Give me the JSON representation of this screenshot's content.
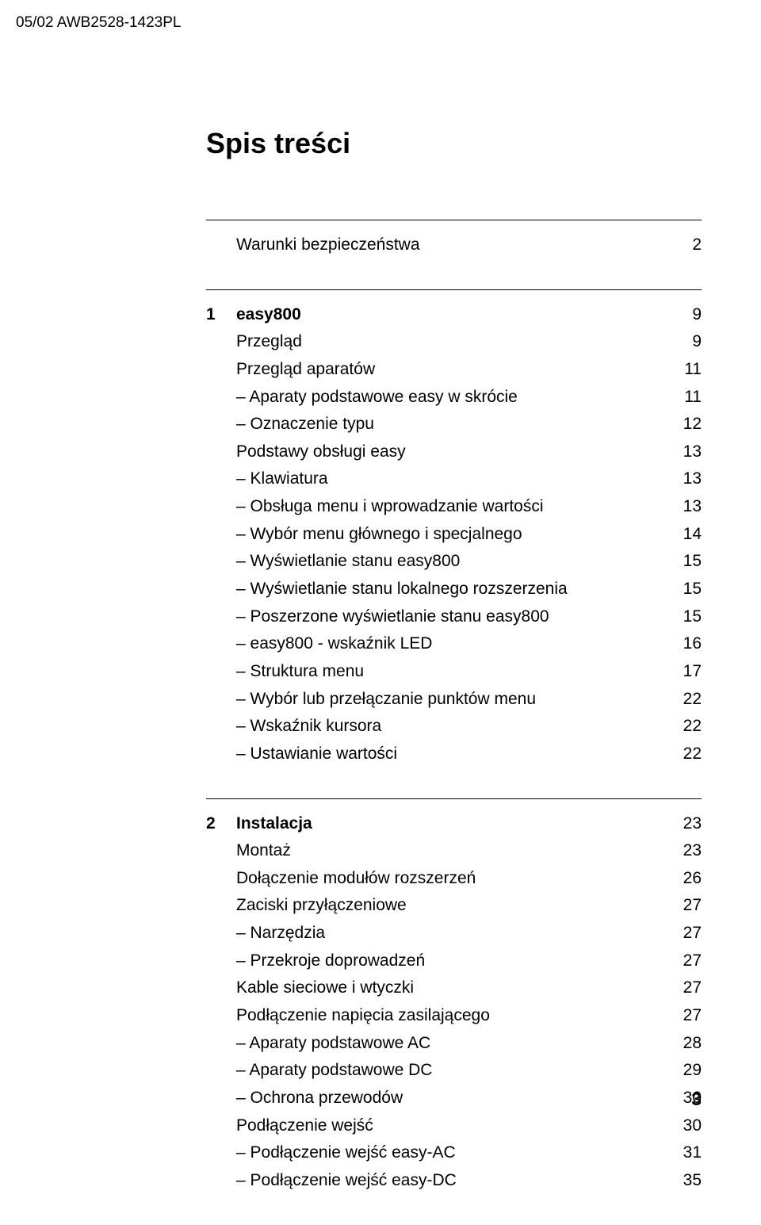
{
  "header": {
    "doc_code": "05/02 AWB2528-1423PL"
  },
  "title": "Spis treści",
  "sections": [
    {
      "entries": [
        {
          "label": "Warunki bezpieczeństwa",
          "page": "2",
          "indent": 1,
          "dash": false,
          "bold": false
        }
      ]
    },
    {
      "chapter_num": "1",
      "chapter_title": "easy800",
      "chapter_page": "9",
      "entries": [
        {
          "label": "Przegląd",
          "page": "9",
          "indent": 1,
          "dash": false,
          "bold": false
        },
        {
          "label": "Przegląd aparatów",
          "page": "11",
          "indent": 1,
          "dash": false,
          "bold": false
        },
        {
          "label": "Aparaty podstawowe easy w skrócie",
          "page": "11",
          "indent": 2,
          "dash": true,
          "bold": false
        },
        {
          "label": "Oznaczenie typu",
          "page": "12",
          "indent": 2,
          "dash": true,
          "bold": false
        },
        {
          "label": "Podstawy obsługi easy",
          "page": "13",
          "indent": 1,
          "dash": false,
          "bold": false
        },
        {
          "label": "Klawiatura",
          "page": "13",
          "indent": 2,
          "dash": true,
          "bold": false
        },
        {
          "label": "Obsługa menu i wprowadzanie wartości",
          "page": "13",
          "indent": 2,
          "dash": true,
          "bold": false
        },
        {
          "label": "Wybór menu głównego i specjalnego",
          "page": "14",
          "indent": 2,
          "dash": true,
          "bold": false
        },
        {
          "label": "Wyświetlanie stanu easy800",
          "page": "15",
          "indent": 2,
          "dash": true,
          "bold": false
        },
        {
          "label": "Wyświetlanie stanu lokalnego rozszerzenia",
          "page": "15",
          "indent": 2,
          "dash": true,
          "bold": false
        },
        {
          "label": "Poszerzone wyświetlanie stanu easy800",
          "page": "15",
          "indent": 2,
          "dash": true,
          "bold": false
        },
        {
          "label": "easy800 - wskaźnik LED",
          "page": "16",
          "indent": 2,
          "dash": true,
          "bold": false
        },
        {
          "label": "Struktura menu",
          "page": "17",
          "indent": 2,
          "dash": true,
          "bold": false
        },
        {
          "label": "Wybór lub przełączanie punktów menu",
          "page": "22",
          "indent": 2,
          "dash": true,
          "bold": false
        },
        {
          "label": "Wskaźnik kursora",
          "page": "22",
          "indent": 2,
          "dash": true,
          "bold": false
        },
        {
          "label": "Ustawianie wartości",
          "page": "22",
          "indent": 2,
          "dash": true,
          "bold": false
        }
      ]
    },
    {
      "chapter_num": "2",
      "chapter_title": "Instalacja",
      "chapter_page": "23",
      "entries": [
        {
          "label": "Montaż",
          "page": "23",
          "indent": 1,
          "dash": false,
          "bold": false
        },
        {
          "label": "Dołączenie modułów rozszerzeń",
          "page": "26",
          "indent": 1,
          "dash": false,
          "bold": false
        },
        {
          "label": "Zaciski przyłączeniowe",
          "page": "27",
          "indent": 1,
          "dash": false,
          "bold": false
        },
        {
          "label": "Narzędzia",
          "page": "27",
          "indent": 2,
          "dash": true,
          "bold": false
        },
        {
          "label": "Przekroje doprowadzeń",
          "page": "27",
          "indent": 2,
          "dash": true,
          "bold": false
        },
        {
          "label": "Kable sieciowe i wtyczki",
          "page": "27",
          "indent": 1,
          "dash": false,
          "bold": false
        },
        {
          "label": "Podłączenie napięcia zasilającego",
          "page": "27",
          "indent": 1,
          "dash": false,
          "bold": false
        },
        {
          "label": "Aparaty podstawowe AC",
          "page": "28",
          "indent": 2,
          "dash": true,
          "bold": false
        },
        {
          "label": "Aparaty podstawowe DC",
          "page": "29",
          "indent": 2,
          "dash": true,
          "bold": false
        },
        {
          "label": "Ochrona przewodów",
          "page": "30",
          "indent": 2,
          "dash": true,
          "bold": false
        },
        {
          "label": "Podłączenie wejść",
          "page": "30",
          "indent": 1,
          "dash": false,
          "bold": false
        },
        {
          "label": "Podłączenie wejść easy-AC",
          "page": "31",
          "indent": 2,
          "dash": true,
          "bold": false
        },
        {
          "label": "Podłączenie wejść easy-DC",
          "page": "35",
          "indent": 2,
          "dash": true,
          "bold": false
        }
      ]
    }
  ],
  "page_number": "3"
}
